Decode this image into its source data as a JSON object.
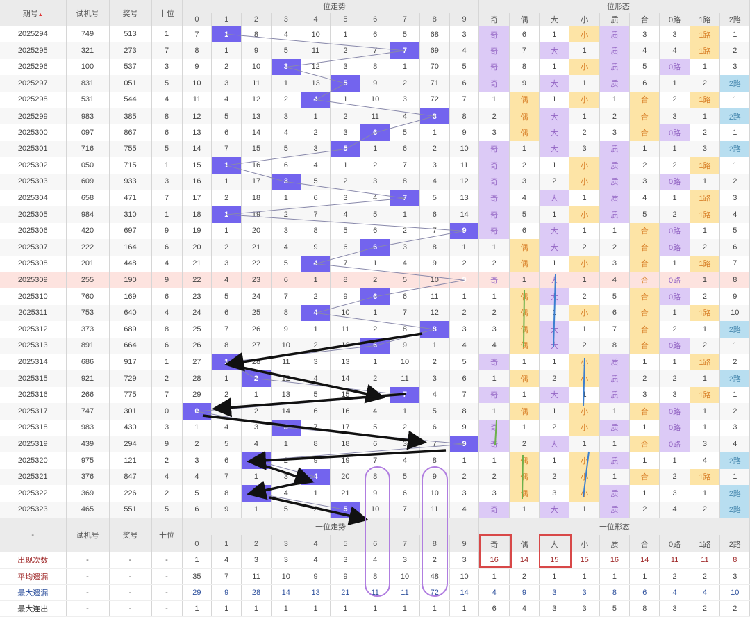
{
  "header": {
    "issue": "期号",
    "sort_indicator": "▲",
    "test_number": "试机号",
    "prize_number": "奖号",
    "tens": "十位",
    "trend_group": "十位走势",
    "form_group": "十位形态",
    "trend_digits": [
      "0",
      "1",
      "2",
      "3",
      "4",
      "5",
      "6",
      "7",
      "8",
      "9"
    ],
    "form_cols": [
      "奇",
      "偶",
      "大",
      "小",
      "质",
      "合",
      "0路",
      "1路",
      "2路"
    ]
  },
  "colors": {
    "hit": "#7364ee",
    "purple": "#dccaf6",
    "yellow": "#fde4a6",
    "blue": "#b8def0",
    "highlight_row": "#fde3df"
  },
  "highlighted_issue": "2025309",
  "rows": [
    {
      "issue": "2025294",
      "test": "749",
      "prize": "513",
      "tens": "1",
      "trend": [
        "7",
        "1",
        "8",
        "4",
        "10",
        "1",
        "6",
        "5",
        "68",
        "3"
      ],
      "form": [
        "奇",
        "6",
        "1",
        "小",
        "质",
        "3",
        "3",
        "1路",
        "1"
      ]
    },
    {
      "issue": "2025295",
      "test": "321",
      "prize": "273",
      "tens": "7",
      "trend": [
        "8",
        "1",
        "9",
        "5",
        "11",
        "2",
        "7",
        "7",
        "69",
        "4"
      ],
      "form": [
        "奇",
        "7",
        "大",
        "1",
        "质",
        "4",
        "4",
        "1路",
        "2"
      ]
    },
    {
      "issue": "2025296",
      "test": "100",
      "prize": "537",
      "tens": "3",
      "trend": [
        "9",
        "2",
        "10",
        "3",
        "12",
        "3",
        "8",
        "1",
        "70",
        "5"
      ],
      "form": [
        "奇",
        "8",
        "1",
        "小",
        "质",
        "5",
        "0路",
        "1",
        "3"
      ]
    },
    {
      "issue": "2025297",
      "test": "831",
      "prize": "051",
      "tens": "5",
      "trend": [
        "10",
        "3",
        "11",
        "1",
        "13",
        "5",
        "9",
        "2",
        "71",
        "6"
      ],
      "form": [
        "奇",
        "9",
        "大",
        "1",
        "质",
        "6",
        "1",
        "2",
        "2路"
      ]
    },
    {
      "issue": "2025298",
      "test": "531",
      "prize": "544",
      "tens": "4",
      "trend": [
        "11",
        "4",
        "12",
        "2",
        "4",
        "1",
        "10",
        "3",
        "72",
        "7"
      ],
      "form": [
        "1",
        "偶",
        "1",
        "小",
        "1",
        "合",
        "2",
        "1路",
        "1"
      ]
    },
    {
      "issue": "2025299",
      "test": "983",
      "prize": "385",
      "tens": "8",
      "trend": [
        "12",
        "5",
        "13",
        "3",
        "1",
        "2",
        "11",
        "4",
        "8",
        "8"
      ],
      "form": [
        "2",
        "偶",
        "大",
        "1",
        "2",
        "合",
        "3",
        "1",
        "2路"
      ]
    },
    {
      "issue": "2025300",
      "test": "097",
      "prize": "867",
      "tens": "6",
      "trend": [
        "13",
        "6",
        "14",
        "4",
        "2",
        "3",
        "6",
        "5",
        "1",
        "9"
      ],
      "form": [
        "3",
        "偶",
        "大",
        "2",
        "3",
        "合",
        "0路",
        "2",
        "1"
      ]
    },
    {
      "issue": "2025301",
      "test": "716",
      "prize": "755",
      "tens": "5",
      "trend": [
        "14",
        "7",
        "15",
        "5",
        "3",
        "5",
        "1",
        "6",
        "2",
        "10"
      ],
      "form": [
        "奇",
        "1",
        "大",
        "3",
        "质",
        "1",
        "1",
        "3",
        "2路"
      ]
    },
    {
      "issue": "2025302",
      "test": "050",
      "prize": "715",
      "tens": "1",
      "trend": [
        "15",
        "1",
        "16",
        "6",
        "4",
        "1",
        "2",
        "7",
        "3",
        "11"
      ],
      "form": [
        "奇",
        "2",
        "1",
        "小",
        "质",
        "2",
        "2",
        "1路",
        "1"
      ]
    },
    {
      "issue": "2025303",
      "test": "609",
      "prize": "933",
      "tens": "3",
      "trend": [
        "16",
        "1",
        "17",
        "3",
        "5",
        "2",
        "3",
        "8",
        "4",
        "12"
      ],
      "form": [
        "奇",
        "3",
        "2",
        "小",
        "质",
        "3",
        "0路",
        "1",
        "2"
      ]
    },
    {
      "issue": "2025304",
      "test": "658",
      "prize": "471",
      "tens": "7",
      "trend": [
        "17",
        "2",
        "18",
        "1",
        "6",
        "3",
        "4",
        "7",
        "5",
        "13"
      ],
      "form": [
        "奇",
        "4",
        "大",
        "1",
        "质",
        "4",
        "1",
        "1路",
        "3"
      ]
    },
    {
      "issue": "2025305",
      "test": "984",
      "prize": "310",
      "tens": "1",
      "trend": [
        "18",
        "1",
        "19",
        "2",
        "7",
        "4",
        "5",
        "1",
        "6",
        "14"
      ],
      "form": [
        "奇",
        "5",
        "1",
        "小",
        "质",
        "5",
        "2",
        "1路",
        "4"
      ]
    },
    {
      "issue": "2025306",
      "test": "420",
      "prize": "697",
      "tens": "9",
      "trend": [
        "19",
        "1",
        "20",
        "3",
        "8",
        "5",
        "6",
        "2",
        "7",
        "9"
      ],
      "form": [
        "奇",
        "6",
        "大",
        "1",
        "1",
        "合",
        "0路",
        "1",
        "5"
      ]
    },
    {
      "issue": "2025307",
      "test": "222",
      "prize": "164",
      "tens": "6",
      "trend": [
        "20",
        "2",
        "21",
        "4",
        "9",
        "6",
        "6",
        "3",
        "8",
        "1"
      ],
      "form": [
        "1",
        "偶",
        "大",
        "2",
        "2",
        "合",
        "0路",
        "2",
        "6"
      ]
    },
    {
      "issue": "2025308",
      "test": "201",
      "prize": "448",
      "tens": "4",
      "trend": [
        "21",
        "3",
        "22",
        "5",
        "4",
        "7",
        "1",
        "4",
        "9",
        "2"
      ],
      "form": [
        "2",
        "偶",
        "1",
        "小",
        "3",
        "合",
        "1",
        "1路",
        "7"
      ]
    },
    {
      "issue": "2025309",
      "test": "255",
      "prize": "190",
      "tens": "9",
      "trend": [
        "22",
        "4",
        "23",
        "6",
        "1",
        "8",
        "2",
        "5",
        "10",
        "9"
      ],
      "form": [
        "奇",
        "1",
        "大",
        "1",
        "4",
        "合",
        "0路",
        "1",
        "8"
      ]
    },
    {
      "issue": "2025310",
      "test": "760",
      "prize": "169",
      "tens": "6",
      "trend": [
        "23",
        "5",
        "24",
        "7",
        "2",
        "9",
        "6",
        "6",
        "11",
        "1"
      ],
      "form": [
        "1",
        "偶",
        "大",
        "2",
        "5",
        "合",
        "0路",
        "2",
        "9"
      ]
    },
    {
      "issue": "2025311",
      "test": "753",
      "prize": "640",
      "tens": "4",
      "trend": [
        "24",
        "6",
        "25",
        "8",
        "4",
        "10",
        "1",
        "7",
        "12",
        "2"
      ],
      "form": [
        "2",
        "偶",
        "1",
        "小",
        "6",
        "合",
        "1",
        "1路",
        "10"
      ]
    },
    {
      "issue": "2025312",
      "test": "373",
      "prize": "689",
      "tens": "8",
      "trend": [
        "25",
        "7",
        "26",
        "9",
        "1",
        "11",
        "2",
        "8",
        "8",
        "3"
      ],
      "form": [
        "3",
        "偶",
        "大",
        "1",
        "7",
        "合",
        "2",
        "1",
        "2路"
      ]
    },
    {
      "issue": "2025313",
      "test": "891",
      "prize": "664",
      "tens": "6",
      "trend": [
        "26",
        "8",
        "27",
        "10",
        "2",
        "12",
        "6",
        "9",
        "1",
        "4"
      ],
      "form": [
        "4",
        "偶",
        "大",
        "2",
        "8",
        "合",
        "0路",
        "2",
        "1"
      ]
    },
    {
      "issue": "2025314",
      "test": "686",
      "prize": "917",
      "tens": "1",
      "trend": [
        "27",
        "1",
        "28",
        "11",
        "3",
        "13",
        "1",
        "10",
        "2",
        "5"
      ],
      "form": [
        "奇",
        "1",
        "1",
        "小",
        "质",
        "1",
        "1",
        "1路",
        "2"
      ]
    },
    {
      "issue": "2025315",
      "test": "921",
      "prize": "729",
      "tens": "2",
      "trend": [
        "28",
        "1",
        "2",
        "12",
        "4",
        "14",
        "2",
        "11",
        "3",
        "6"
      ],
      "form": [
        "1",
        "偶",
        "2",
        "小",
        "质",
        "2",
        "2",
        "1",
        "2路"
      ]
    },
    {
      "issue": "2025316",
      "test": "266",
      "prize": "775",
      "tens": "7",
      "trend": [
        "29",
        "2",
        "1",
        "13",
        "5",
        "15",
        "3",
        "7",
        "4",
        "7"
      ],
      "form": [
        "奇",
        "1",
        "大",
        "1",
        "质",
        "3",
        "3",
        "1路",
        "1"
      ]
    },
    {
      "issue": "2025317",
      "test": "747",
      "prize": "301",
      "tens": "0",
      "trend": [
        "0",
        "3",
        "2",
        "14",
        "6",
        "16",
        "4",
        "1",
        "5",
        "8"
      ],
      "form": [
        "1",
        "偶",
        "1",
        "小",
        "1",
        "合",
        "0路",
        "1",
        "2"
      ]
    },
    {
      "issue": "2025318",
      "test": "983",
      "prize": "430",
      "tens": "3",
      "trend": [
        "1",
        "4",
        "3",
        "3",
        "7",
        "17",
        "5",
        "2",
        "6",
        "9"
      ],
      "form": [
        "奇",
        "1",
        "2",
        "小",
        "质",
        "1",
        "0路",
        "1",
        "3"
      ]
    },
    {
      "issue": "2025319",
      "test": "439",
      "prize": "294",
      "tens": "9",
      "trend": [
        "2",
        "5",
        "4",
        "1",
        "8",
        "18",
        "6",
        "3",
        "7",
        "9"
      ],
      "form": [
        "奇",
        "2",
        "大",
        "1",
        "1",
        "合",
        "0路",
        "3",
        "4"
      ]
    },
    {
      "issue": "2025320",
      "test": "975",
      "prize": "121",
      "tens": "2",
      "trend": [
        "3",
        "6",
        "2",
        "2",
        "9",
        "19",
        "7",
        "4",
        "8",
        "1"
      ],
      "form": [
        "1",
        "偶",
        "1",
        "小",
        "质",
        "1",
        "1",
        "4",
        "2路"
      ]
    },
    {
      "issue": "2025321",
      "test": "376",
      "prize": "847",
      "tens": "4",
      "trend": [
        "4",
        "7",
        "1",
        "3",
        "4",
        "20",
        "8",
        "5",
        "9",
        "2"
      ],
      "form": [
        "2",
        "偶",
        "2",
        "小",
        "1",
        "合",
        "2",
        "1路",
        "1"
      ]
    },
    {
      "issue": "2025322",
      "test": "369",
      "prize": "226",
      "tens": "2",
      "trend": [
        "5",
        "8",
        "2",
        "4",
        "1",
        "21",
        "9",
        "6",
        "10",
        "3"
      ],
      "form": [
        "3",
        "偶",
        "3",
        "小",
        "质",
        "1",
        "3",
        "1",
        "2路"
      ]
    },
    {
      "issue": "2025323",
      "test": "465",
      "prize": "551",
      "tens": "5",
      "trend": [
        "6",
        "9",
        "1",
        "5",
        "2",
        "5",
        "10",
        "7",
        "11",
        "4"
      ],
      "form": [
        "奇",
        "1",
        "大",
        "1",
        "质",
        "2",
        "4",
        "2",
        "2路"
      ]
    }
  ],
  "footer": {
    "dash": "-",
    "stats": [
      {
        "label": "出现次数",
        "cols": [
          "-",
          "-",
          "-"
        ],
        "trend": [
          "1",
          "4",
          "3",
          "3",
          "4",
          "3",
          "4",
          "3",
          "2",
          "3"
        ],
        "form": [
          "16",
          "14",
          "15",
          "15",
          "16",
          "14",
          "11",
          "11",
          "8"
        ]
      },
      {
        "label": "平均遗漏",
        "cols": [
          "-",
          "-",
          "-"
        ],
        "trend": [
          "35",
          "7",
          "11",
          "10",
          "9",
          "9",
          "8",
          "10",
          "48",
          "10"
        ],
        "form": [
          "1",
          "2",
          "1",
          "1",
          "1",
          "1",
          "2",
          "2",
          "3"
        ]
      },
      {
        "label": "最大遗漏",
        "cols": [
          "-",
          "-",
          "-"
        ],
        "trend": [
          "29",
          "9",
          "28",
          "14",
          "13",
          "21",
          "11",
          "11",
          "72",
          "14"
        ],
        "form": [
          "4",
          "9",
          "3",
          "3",
          "8",
          "6",
          "4",
          "4",
          "10"
        ]
      },
      {
        "label": "最大连出",
        "cols": [
          "-",
          "-",
          "-"
        ],
        "trend": [
          "1",
          "1",
          "1",
          "1",
          "1",
          "1",
          "1",
          "1",
          "1",
          "1"
        ],
        "form": [
          "6",
          "4",
          "3",
          "3",
          "5",
          "8",
          "3",
          "2",
          "2"
        ]
      }
    ]
  }
}
